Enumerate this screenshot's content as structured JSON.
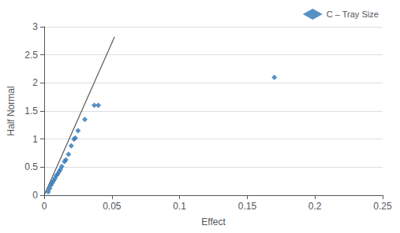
{
  "chart_data": {
    "type": "scatter",
    "xlabel": "Effect",
    "ylabel": "Half Normal",
    "series": [
      {
        "name": "C – Tray Size",
        "type": "scatter",
        "color": "#2E75B6",
        "marker": "diamond",
        "x": [
          0.003,
          0.004,
          0.005,
          0.006,
          0.007,
          0.008,
          0.009,
          0.01,
          0.011,
          0.012,
          0.013,
          0.015,
          0.016,
          0.018,
          0.02,
          0.022,
          0.023,
          0.025,
          0.03,
          0.037,
          0.04,
          0.17
        ],
        "values": [
          0.06,
          0.12,
          0.18,
          0.22,
          0.26,
          0.3,
          0.35,
          0.38,
          0.42,
          0.46,
          0.51,
          0.6,
          0.63,
          0.73,
          0.88,
          1.0,
          1.02,
          1.15,
          1.35,
          1.6,
          1.6,
          2.1
        ]
      },
      {
        "type": "line",
        "color": "#595959",
        "x": [
          0.0,
          0.052
        ],
        "values": [
          0.0,
          2.82
        ]
      }
    ],
    "xlim": [
      0,
      0.25
    ],
    "ylim": [
      0,
      3
    ],
    "xticks": [
      0,
      0.05,
      0.1,
      0.15,
      0.2,
      0.25
    ],
    "yticks": [
      0,
      0.5,
      1,
      1.5,
      2,
      2.5,
      3
    ],
    "grid": "y",
    "legend": "upper right"
  }
}
